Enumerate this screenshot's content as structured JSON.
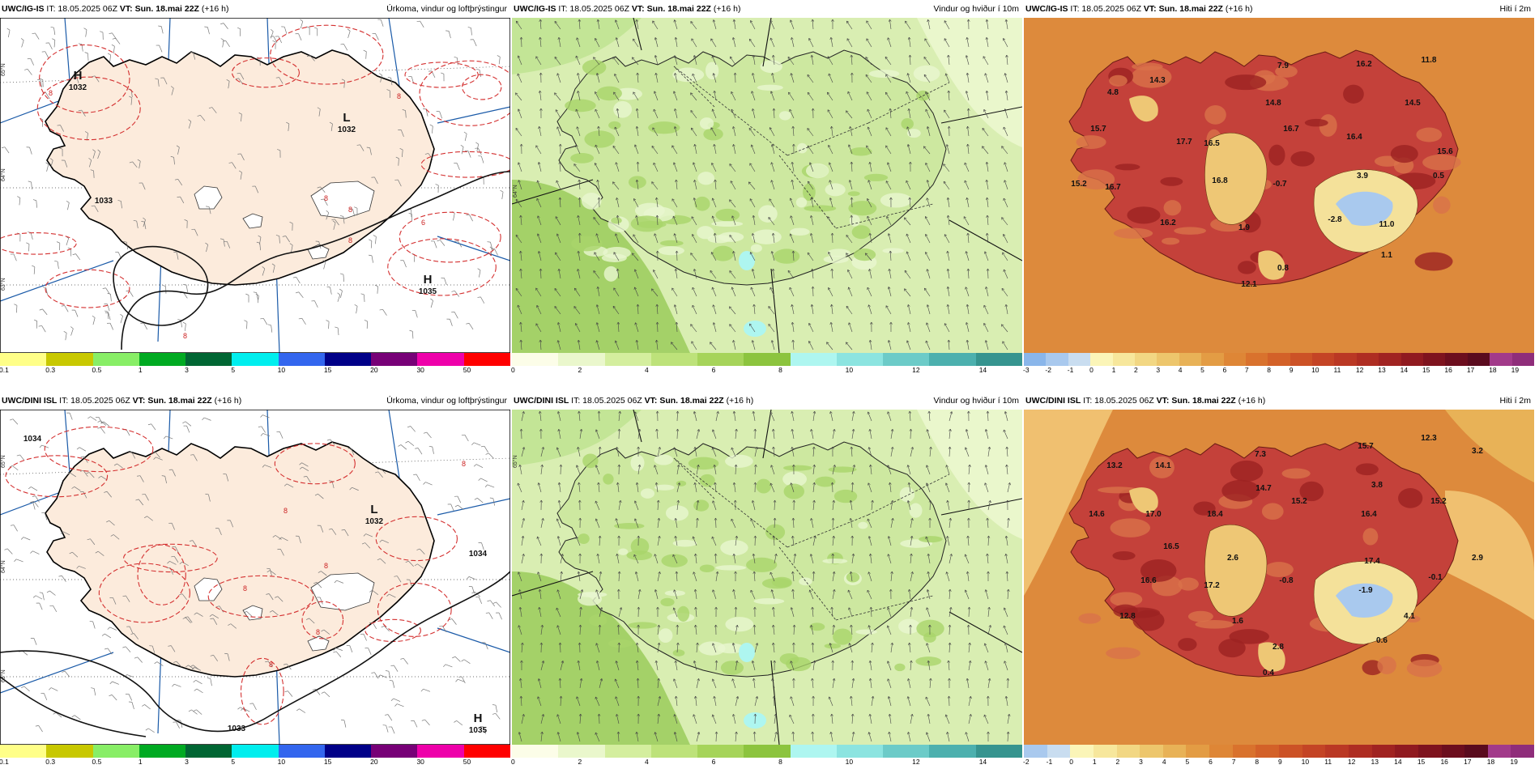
{
  "rows": [
    {
      "panels": [
        {
          "model": "UWC/IG-IS",
          "it": "IT: 18.05.2025 06Z",
          "vt": "VT: Sun. 18.mai 22Z",
          "lead": "(+16 h)",
          "title": "Úrkoma, vindur og loftþrýstingur"
        },
        {
          "model": "UWC/IG-IS",
          "it": "IT: 18.05.2025 06Z",
          "vt": "VT: Sun. 18.mai 22Z",
          "lead": "(+16 h)",
          "title": "Vindur og hviður í 10m"
        },
        {
          "model": "UWC/IG-IS",
          "it": "IT: 18.05.2025 06Z",
          "vt": "VT: Sun. 18.mai 22Z",
          "lead": "(+16 h)",
          "title": "Hiti í 2m"
        }
      ],
      "pressure_labels": [
        {
          "type": "H",
          "value": "1032"
        },
        {
          "type": "L",
          "value": "1032"
        },
        {
          "type": "",
          "value": "1033"
        },
        {
          "type": "H",
          "value": "1035"
        }
      ],
      "isohyets": [
        "8",
        "8",
        "6",
        "8",
        "8",
        "8",
        "8"
      ],
      "temps": [
        "14.3",
        "7.9",
        "16.2",
        "11.8",
        "4.8",
        "14.8",
        "14.5",
        "15.7",
        "17.7",
        "16.5",
        "16.7",
        "16.4",
        "15.6",
        "15.2",
        "16.7",
        "16.8",
        "-0.7",
        "3.9",
        "0.5",
        "16.2",
        "1.9",
        "-2.8",
        "11.0",
        "1.1",
        "0.8",
        "12.1"
      ]
    },
    {
      "panels": [
        {
          "model": "UWC/DINI ISL",
          "it": "IT: 18.05.2025 06Z",
          "vt": "VT: Sun. 18.mai 22Z",
          "lead": "(+16 h)",
          "title": "Úrkoma, vindur og loftþrýstingur"
        },
        {
          "model": "UWC/DINI ISL",
          "it": "IT: 18.05.2025 06Z",
          "vt": "VT: Sun. 18.mai 22Z",
          "lead": "(+16 h)",
          "title": "Vindur og hviður í 10m"
        },
        {
          "model": "UWC/DINI ISL",
          "it": "IT: 18.05.2025 06Z",
          "vt": "VT: Sun. 18.mai 22Z",
          "lead": "(+16 h)",
          "title": "Hiti í 2m"
        }
      ],
      "pressure_labels": [
        {
          "type": "L",
          "value": "1032"
        },
        {
          "type": "",
          "value": "1033"
        },
        {
          "type": "H",
          "value": "1035"
        },
        {
          "type": "",
          "value": "1034"
        },
        {
          "type": "",
          "value": "1034"
        }
      ],
      "isohyets": [
        "8",
        "8",
        "8",
        "8",
        "8",
        "8"
      ],
      "temps": [
        "13.2",
        "14.1",
        "7.3",
        "15.7",
        "12.3",
        "3.2",
        "14.6",
        "17.0",
        "18.4",
        "14.7",
        "15.2",
        "3.8",
        "15.2",
        "16.5",
        "16.4",
        "2.6",
        "17.4",
        "2.9",
        "16.6",
        "17.2",
        "-0.8",
        "-1.9",
        "-0.1",
        "1.6",
        "4.1",
        "12.8",
        "2.8",
        "0.6",
        "0.4"
      ]
    }
  ],
  "lat_labels": [
    "65°N",
    "64°N",
    "63°N"
  ],
  "precip_legend": {
    "labels": [
      "0.1",
      "0.3",
      "0.5",
      "1",
      "3",
      "5",
      "10",
      "15",
      "20",
      "30",
      "50"
    ],
    "colors": [
      "#ffff88",
      "#c8c800",
      "#88ee66",
      "#00aa22",
      "#006633",
      "#00eeee",
      "#3366ee",
      "#000088",
      "#770077",
      "#ee00aa",
      "#ff0000"
    ]
  },
  "wind_legend": {
    "labels": [
      "0",
      "2",
      "4",
      "6",
      "8",
      "10",
      "12",
      "14"
    ],
    "colors": [
      "#fcfde8",
      "#eaf7cc",
      "#d4ee9e",
      "#bde27a",
      "#a6d45a",
      "#8cc43e",
      "#aef6f0",
      "#8ce4e0",
      "#6ccbc8",
      "#4cb0ae",
      "#36948f"
    ]
  },
  "temp_legend": {
    "rows": [
      [
        "-3",
        "-2",
        "-1",
        "0",
        "1",
        "2",
        "3",
        "4",
        "5",
        "6",
        "7",
        "8",
        "9",
        "10",
        "11",
        "12",
        "13",
        "14",
        "15",
        "16",
        "17",
        "18",
        "19"
      ],
      [
        "-2",
        "-1",
        "0",
        "1",
        "2",
        "3",
        "4",
        "5",
        "6",
        "7",
        "8",
        "9",
        "10",
        "11",
        "12",
        "13",
        "14",
        "15",
        "16",
        "17",
        "18",
        "19"
      ]
    ],
    "colors": [
      "#8ab6ea",
      "#a9c9ee",
      "#c9ddf0",
      "#fbf5b8",
      "#f7e79c",
      "#f2d783",
      "#edc66c",
      "#e8b257",
      "#e39c44",
      "#de8636",
      "#d9722d",
      "#d36128",
      "#cc5226",
      "#c44425",
      "#ba3824",
      "#ae2d22",
      "#a02321",
      "#901a20",
      "#7e131e",
      "#6c0e1e",
      "#5a0b1e",
      "#a23a8a",
      "#8f2d7a"
    ]
  },
  "colors": {
    "land": "#fcebdc",
    "sea": "#ffffff",
    "isobar": "#111111",
    "isohyet": "#d43030",
    "graticule": "#1a5aa8",
    "wind_sea": "#9acb5b",
    "wind_land": "#d9eeb2",
    "temp_sea": "#dd8a3c",
    "temp_land": "#c4413a"
  }
}
